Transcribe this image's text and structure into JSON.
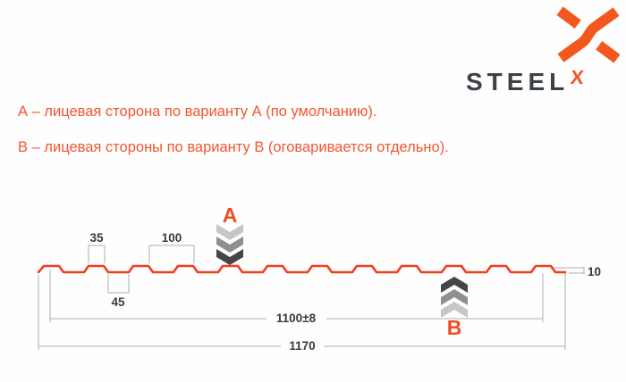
{
  "logo": {
    "brand": "STEEL",
    "sup": "X",
    "icon": "steelx-x-mark"
  },
  "notes": [
    {
      "text": "А – лицевая сторона по варианту А (по умолчанию)."
    },
    {
      "text": "В – лицевая стороны по варианту В (оговаривается отдельно)."
    }
  ],
  "diagram": {
    "labels": {
      "side_a": "A",
      "side_b": "B"
    },
    "dimensions": {
      "crest_top_width": "35",
      "rib_pitch": "100",
      "valley_bottom_width": "45",
      "profile_height": "10",
      "working_width": "1100±8",
      "overall_width": "1170"
    },
    "colors": {
      "accent": "#F14A24",
      "profile_line": "#F13D1C",
      "note_text": "#F2562F",
      "logo_dark": "#3A4147",
      "logo_orange": "#F4571E",
      "dim_line": "#ADADAD",
      "dim_text": "#383838",
      "chevron_light": "#C6C6C6",
      "chevron_mid": "#8F8F8F",
      "chevron_dark": "#454545"
    }
  }
}
